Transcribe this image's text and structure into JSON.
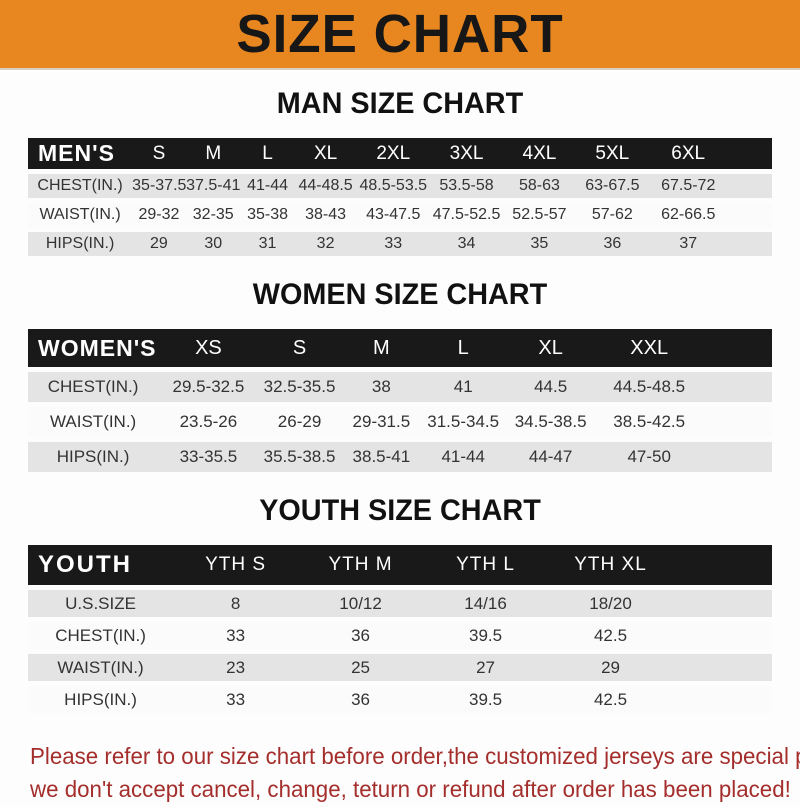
{
  "banner": {
    "title": "SIZE CHART"
  },
  "sections": [
    {
      "title": "MAN SIZE CHART",
      "header_label": "MEN'S",
      "columns": [
        "S",
        "M",
        "L",
        "XL",
        "2XL",
        "3XL",
        "4XL",
        "5XL",
        "6XL"
      ],
      "rows": [
        {
          "label": "CHEST(IN.)",
          "values": [
            "35-37.5",
            "37.5-41",
            "41-44",
            "44-48.5",
            "48.5-53.5",
            "53.5-58",
            "58-63",
            "63-67.5",
            "67.5-72"
          ]
        },
        {
          "label": "WAIST(IN.)",
          "values": [
            "29-32",
            "32-35",
            "35-38",
            "38-43",
            "43-47.5",
            "47.5-52.5",
            "52.5-57",
            "57-62",
            "62-66.5"
          ]
        },
        {
          "label": "HIPS(IN.)",
          "values": [
            "29",
            "30",
            "31",
            "32",
            "33",
            "34",
            "35",
            "36",
            "37"
          ]
        }
      ]
    },
    {
      "title": "WOMEN SIZE CHART",
      "header_label": "WOMEN'S",
      "columns": [
        "XS",
        "S",
        "M",
        "L",
        "XL",
        "XXL"
      ],
      "rows": [
        {
          "label": "CHEST(IN.)",
          "values": [
            "29.5-32.5",
            "32.5-35.5",
            "38",
            "41",
            "44.5",
            "44.5-48.5"
          ]
        },
        {
          "label": "WAIST(IN.)",
          "values": [
            "23.5-26",
            "26-29",
            "29-31.5",
            "31.5-34.5",
            "34.5-38.5",
            "38.5-42.5"
          ]
        },
        {
          "label": "HIPS(IN.)",
          "values": [
            "33-35.5",
            "35.5-38.5",
            "38.5-41",
            "41-44",
            "44-47",
            "47-50"
          ]
        }
      ]
    },
    {
      "title": "YOUTH SIZE CHART",
      "header_label": "YOUTH",
      "columns": [
        "YTH S",
        "YTH M",
        "YTH L",
        "YTH XL"
      ],
      "rows": [
        {
          "label": "U.S.SIZE",
          "values": [
            "8",
            "10/12",
            "14/16",
            "18/20"
          ]
        },
        {
          "label": "CHEST(IN.)",
          "values": [
            "33",
            "36",
            "39.5",
            "42.5"
          ]
        },
        {
          "label": "WAIST(IN.)",
          "values": [
            "23",
            "25",
            "27",
            "29"
          ]
        },
        {
          "label": "HIPS(IN.)",
          "values": [
            "33",
            "36",
            "39.5",
            "42.5"
          ]
        }
      ]
    }
  ],
  "footer": {
    "line1": "Please refer to our size chart before order,the customized jerseys are special products,",
    "line2": "we don't accept cancel, change, teturn or refund after order has been placed!"
  },
  "colors": {
    "banner_bg": "#E8861F",
    "header_bar_bg": "#191919",
    "row_stripe": "#e4e4e4",
    "footer_text": "#A42E2C"
  }
}
